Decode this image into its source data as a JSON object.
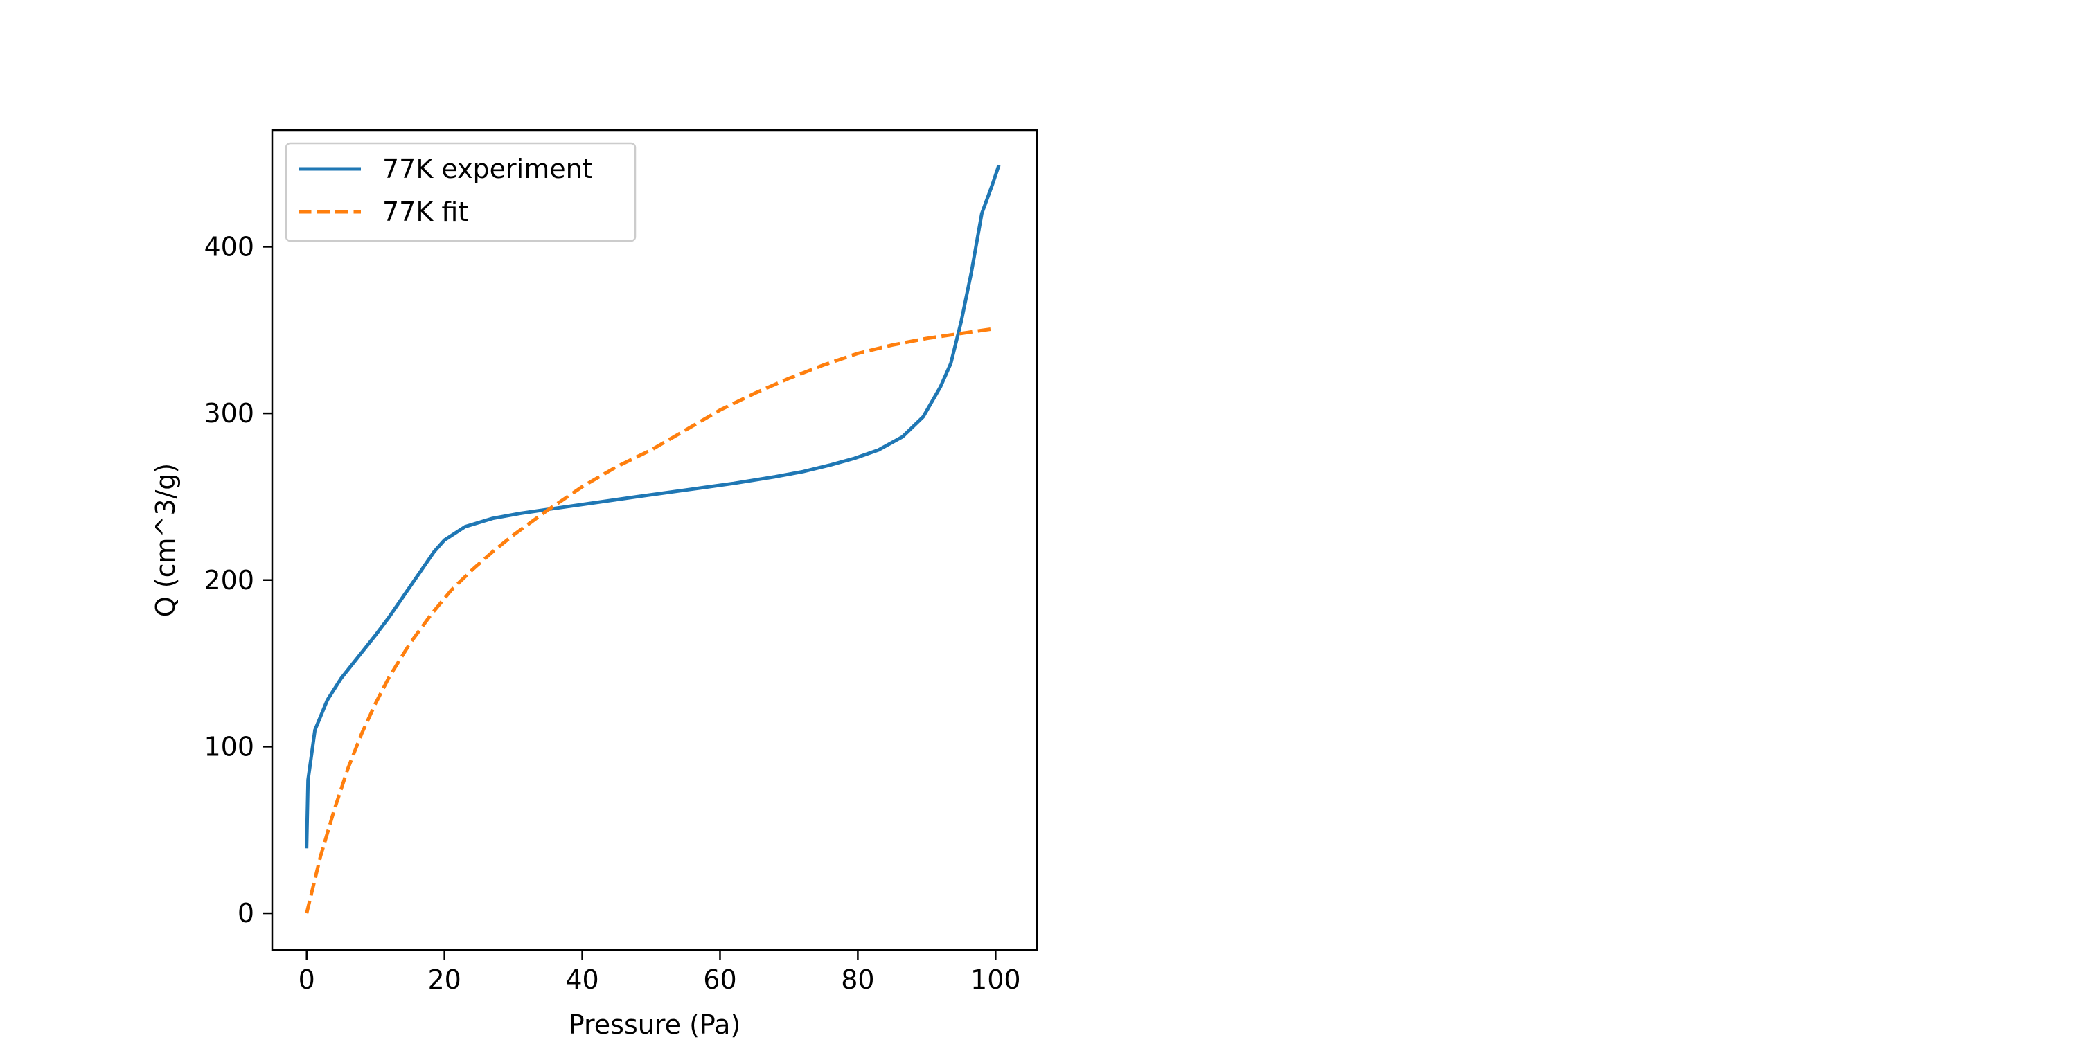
{
  "chart_data": {
    "type": "line",
    "title": "",
    "xlabel": "Pressure (Pa)",
    "ylabel": "Q (cm^3/g)",
    "xlim": [
      -5,
      106
    ],
    "ylim": [
      -22,
      470
    ],
    "xticks": [
      0,
      20,
      40,
      60,
      80,
      100
    ],
    "xtick_labels": [
      "0",
      "20",
      "40",
      "60",
      "80",
      "100"
    ],
    "yticks": [
      0,
      100,
      200,
      300,
      400
    ],
    "ytick_labels": [
      "0",
      "100",
      "200",
      "300",
      "400"
    ],
    "grid": false,
    "legend": {
      "placement": "upper-left"
    },
    "series": [
      {
        "name": "77K experiment",
        "color": "#1f77b4",
        "style": "solid",
        "x": [
          0,
          0.2,
          1.2,
          3,
          5,
          7.5,
          10,
          12,
          14.5,
          17,
          18.5,
          20,
          23,
          27,
          31,
          36,
          42,
          48,
          55,
          62,
          68,
          72,
          76,
          79.5,
          83,
          86.5,
          89.5,
          92,
          93.5,
          95,
          96.5,
          98,
          99.5,
          100.4
        ],
        "y": [
          40,
          80,
          110,
          128,
          141,
          154,
          167,
          178,
          193,
          208,
          217,
          224,
          232,
          237,
          240,
          243,
          246.5,
          250,
          254,
          258,
          262,
          265,
          269,
          273,
          278,
          286,
          298,
          316,
          330,
          355,
          385,
          420,
          437,
          448
        ]
      },
      {
        "name": "77K fit",
        "color": "#ff7f0e",
        "style": "dashed",
        "x": [
          0,
          2,
          4,
          6,
          8,
          10,
          12,
          15,
          18,
          21,
          24,
          27,
          30,
          35,
          40,
          45,
          50,
          55,
          60,
          65,
          70,
          75,
          80,
          85,
          90,
          95,
          100
        ],
        "y": [
          0,
          34,
          62,
          87,
          108,
          126,
          142,
          162,
          179,
          194,
          206,
          217,
          227,
          242,
          256,
          268,
          278,
          290,
          302,
          312,
          321,
          329,
          336,
          341,
          345,
          348,
          351
        ]
      }
    ]
  }
}
